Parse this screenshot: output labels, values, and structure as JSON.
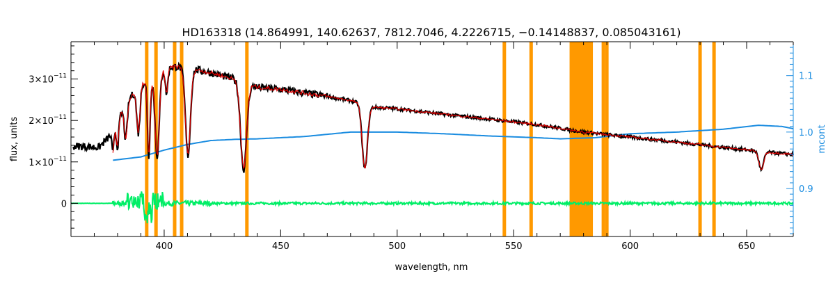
{
  "chart_data": {
    "type": "line",
    "title": "HD163318   (14.864991, 140.62637, 7812.7046, 4.2226715, −0.14148837, 0.085043161)",
    "xlabel": "wavelength, nm",
    "ylabel": "flux, units",
    "y2label": "mcont",
    "xlim": [
      360,
      670
    ],
    "ylim": [
      -8e-12,
      3.9e-11
    ],
    "y2lim": [
      0.815,
      1.16
    ],
    "x_ticks": [
      400,
      450,
      500,
      550,
      600,
      650
    ],
    "x_tick_labels": [
      "400",
      "450",
      "500",
      "550",
      "600",
      "650"
    ],
    "y_ticks": [
      0,
      1e-11,
      2e-11,
      3e-11
    ],
    "y_tick_labels": [
      {
        "mant": "0",
        "exp": ""
      },
      {
        "mant": "1×10",
        "exp": "−11"
      },
      {
        "mant": "2×10",
        "exp": "−11"
      },
      {
        "mant": "3×10",
        "exp": "−11"
      }
    ],
    "y2_ticks": [
      0.9,
      1.0,
      1.1
    ],
    "y2_tick_labels": [
      "0.9",
      "1.0",
      "1.1"
    ],
    "colors": {
      "observed": "#000000",
      "model": "#e00000",
      "residual": "#00ee66",
      "mcont": "#1a8ce0",
      "mask": "#ff9900",
      "axis": "#000000",
      "axis2": "#1a8ce0"
    },
    "mask_lines": [
      392.5,
      396.5,
      404.5,
      407.5,
      435.5,
      546.0,
      557.5,
      588.5,
      590.0,
      630.0,
      636.0
    ],
    "mask_band": [
      574,
      584
    ],
    "series": [
      {
        "id": "observed",
        "continuum": [
          [
            363,
            1.38e-11
          ],
          [
            372,
            1.35e-11
          ],
          [
            378,
            1.7e-11
          ],
          [
            383,
            2.35e-11
          ],
          [
            388,
            2.75e-11
          ],
          [
            393,
            3e-11
          ],
          [
            400,
            3.25e-11
          ],
          [
            405,
            3.3e-11
          ],
          [
            412,
            3.25e-11
          ],
          [
            420,
            3.15e-11
          ],
          [
            430,
            3e-11
          ],
          [
            440,
            2.8e-11
          ],
          [
            450,
            2.75e-11
          ],
          [
            470,
            2.58e-11
          ],
          [
            480,
            2.48e-11
          ],
          [
            490,
            2.32e-11
          ],
          [
            500,
            2.28e-11
          ],
          [
            520,
            2.15e-11
          ],
          [
            540,
            2.03e-11
          ],
          [
            560,
            1.9e-11
          ],
          [
            580,
            1.72e-11
          ],
          [
            600,
            1.6e-11
          ],
          [
            620,
            1.48e-11
          ],
          [
            640,
            1.35e-11
          ],
          [
            660,
            1.23e-11
          ],
          [
            670,
            1.18e-11
          ]
        ],
        "absorption_lines": [
          [
            378,
            5e-12,
            0.6
          ],
          [
            380,
            6e-12,
            0.7
          ],
          [
            383.5,
            8.5e-12,
            0.9
          ],
          [
            388.9,
            1.1e-11,
            1.0
          ],
          [
            393.4,
            1.9e-11,
            0.8
          ],
          [
            397,
            2e-11,
            1.3
          ],
          [
            401,
            6e-12,
            0.8
          ],
          [
            410.2,
            2.1e-11,
            1.5
          ],
          [
            434.1,
            2.1e-11,
            1.8
          ],
          [
            486.1,
            1.55e-11,
            1.6
          ],
          [
            656.3,
            4.5e-12,
            1.4
          ]
        ]
      },
      {
        "id": "model",
        "start": 378,
        "end": 670
      },
      {
        "id": "mcont",
        "points": [
          [
            378,
            0.95
          ],
          [
            390,
            0.956
          ],
          [
            400,
            0.968
          ],
          [
            410,
            0.978
          ],
          [
            420,
            0.985
          ],
          [
            430,
            0.987
          ],
          [
            440,
            0.988
          ],
          [
            460,
            0.992
          ],
          [
            480,
            1.0
          ],
          [
            500,
            1.0
          ],
          [
            520,
            0.997
          ],
          [
            540,
            0.993
          ],
          [
            560,
            0.99
          ],
          [
            570,
            0.988
          ],
          [
            585,
            0.99
          ],
          [
            600,
            0.997
          ],
          [
            620,
            1.0
          ],
          [
            640,
            1.005
          ],
          [
            655,
            1.012
          ],
          [
            665,
            1.01
          ],
          [
            670,
            1.006
          ]
        ]
      },
      {
        "id": "residual",
        "start": 378,
        "end": 670
      }
    ]
  }
}
